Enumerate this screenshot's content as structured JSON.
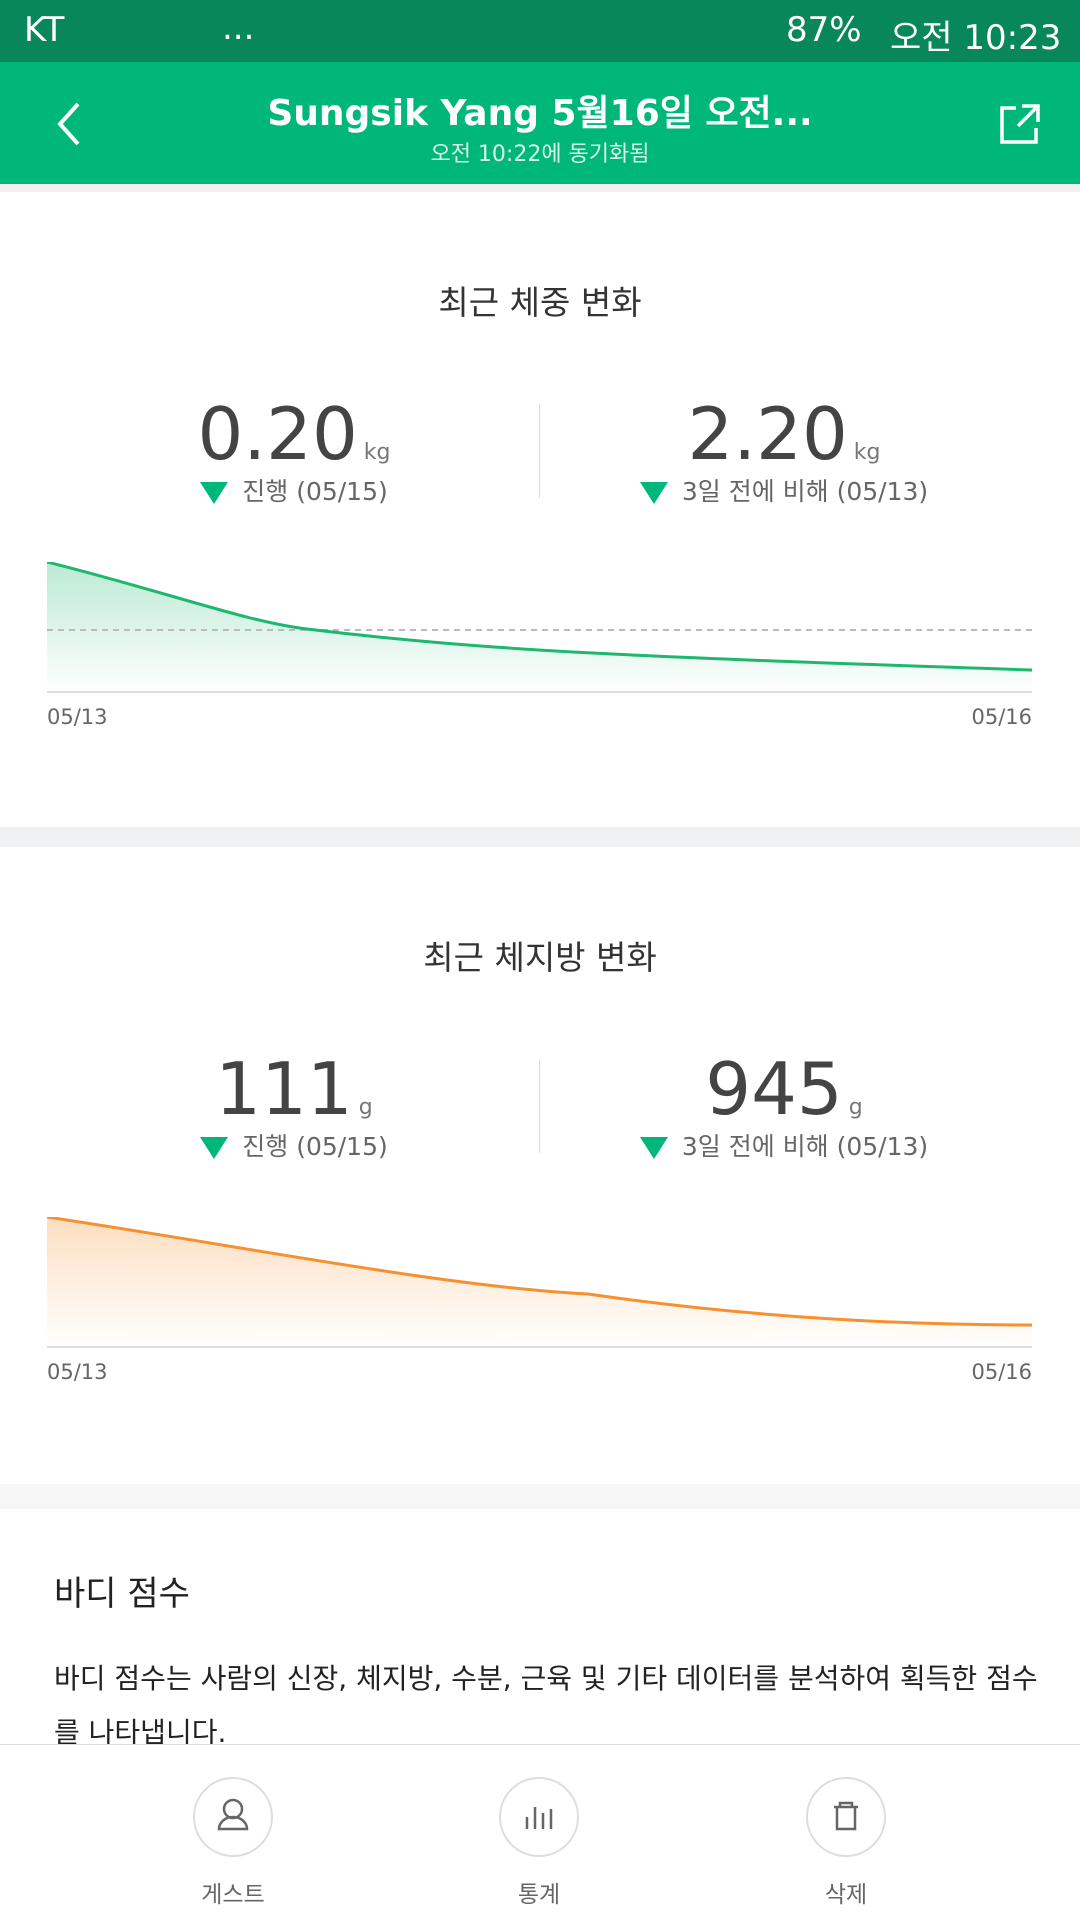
{
  "status_bar": {
    "carrier": "KT",
    "more": "...",
    "battery": "87%",
    "time": "오전 10:23"
  },
  "header": {
    "title": "Sungsik Yang 5월16일 오전...",
    "subtitle": "오전 10:22에 동기화됨"
  },
  "sections": [
    {
      "title": "최근 체중 변화",
      "stats": [
        {
          "value": "0.20",
          "unit": "kg",
          "caption": "진행 (05/15)"
        },
        {
          "value": "2.20",
          "unit": "kg",
          "caption": "3일 전에 비해 (05/13)"
        }
      ],
      "start_label": "05/13",
      "end_label": "05/16"
    },
    {
      "title": "최근 체지방 변화",
      "stats": [
        {
          "value": "111",
          "unit": "g",
          "caption": "진행 (05/15)"
        },
        {
          "value": "945",
          "unit": "g",
          "caption": "3일 전에 비해 (05/13)"
        }
      ],
      "start_label": "05/13",
      "end_label": "05/16"
    }
  ],
  "body_score": {
    "title": "바디 점수",
    "description": "바디 점수는 사람의 신장, 체지방, 수분, 근육 및 기타 데이터를 분석하여 획득한 점수를 나타냅니다."
  },
  "bottom_nav": [
    "게스트",
    "통계",
    "삭제"
  ]
}
